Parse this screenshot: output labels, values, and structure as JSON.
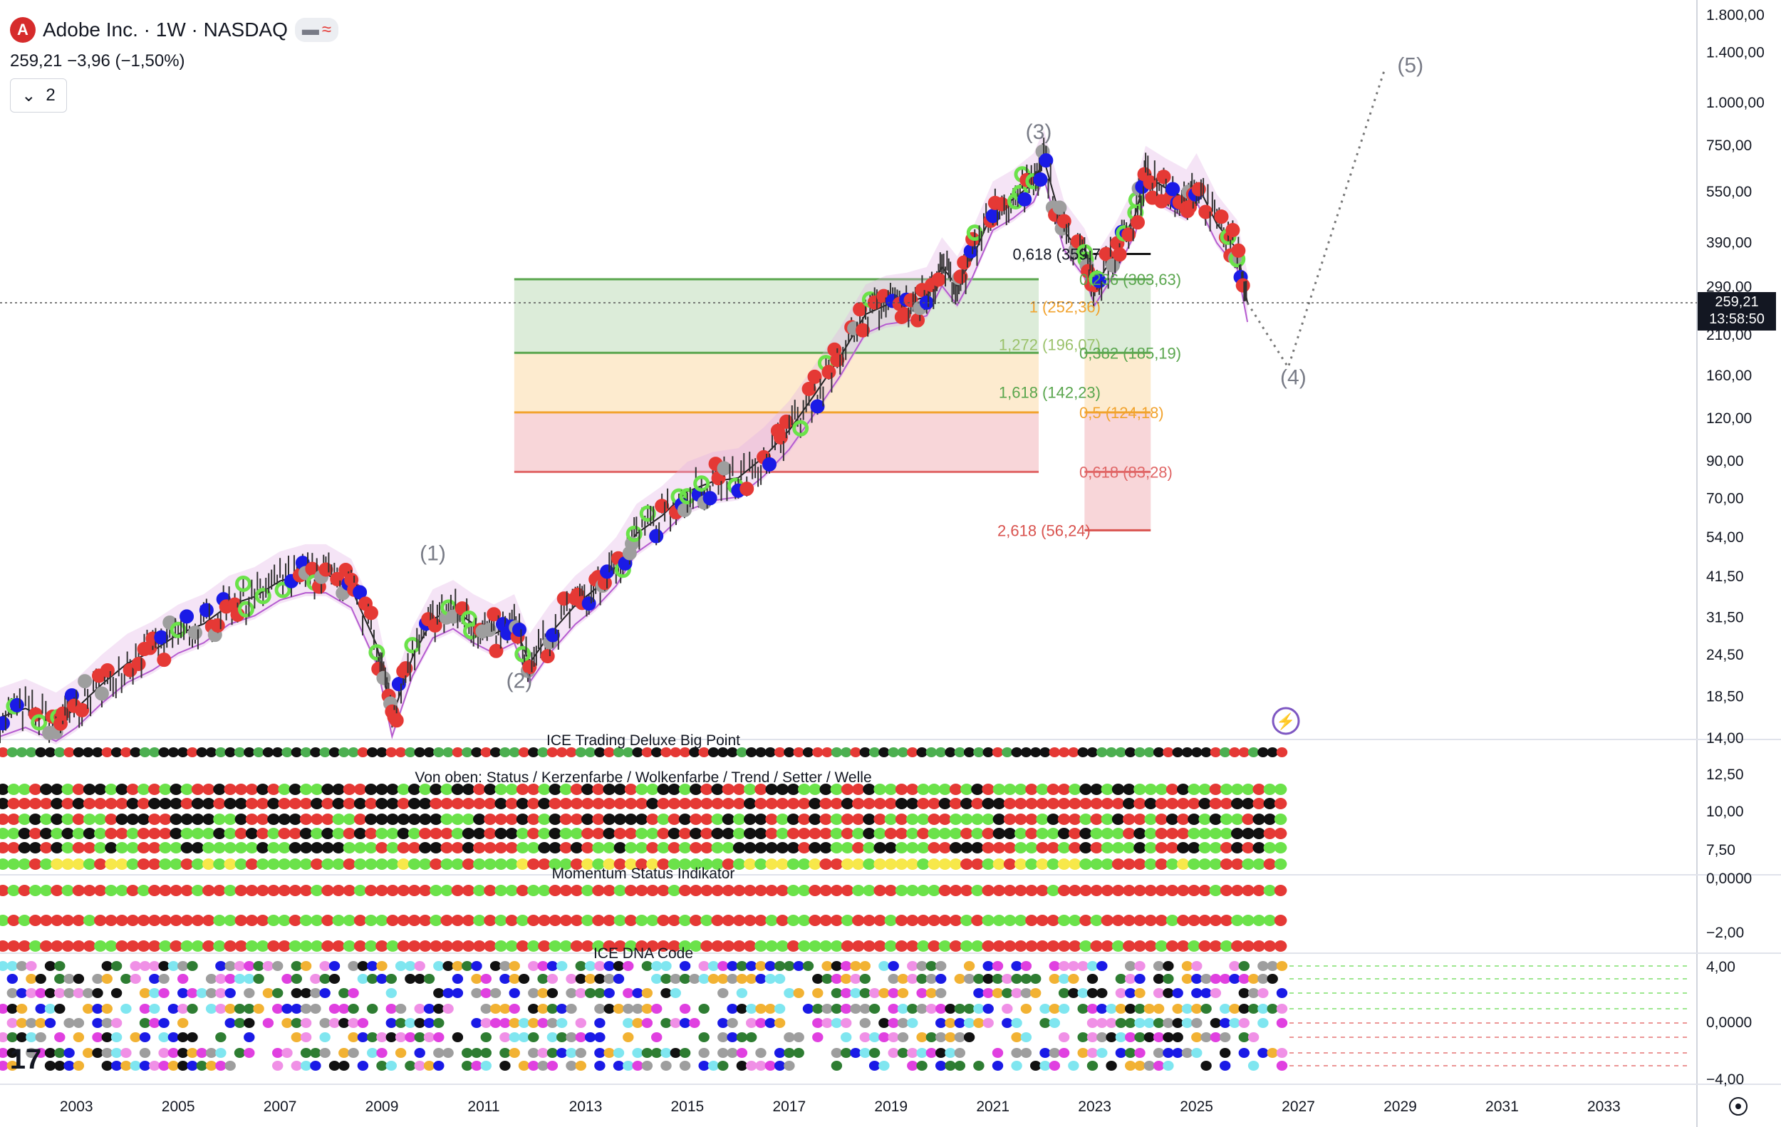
{
  "header": {
    "title": "Adobe Inc. · 1W · NASDAQ",
    "logo_letter": "A",
    "price": "259,21",
    "change": "−3,96 (−1,50%)",
    "collapse_count": "2",
    "pill_icons": [
      "minus-icon",
      "wave-icon"
    ]
  },
  "price_tag": {
    "price": "259,21",
    "countdown": "13:58:50"
  },
  "chart_data": {
    "type": "line",
    "series_label": "",
    "price_scale": "log",
    "y_ticks": [
      "1.800,00",
      "1.400,00",
      "1.000,00",
      "750,00",
      "550,00",
      "390,00",
      "290,00",
      "210,00",
      "160,00",
      "120,00",
      "90,00",
      "70,00",
      "54,00",
      "41,50",
      "31,50",
      "24,50",
      "18,50",
      "14,00"
    ],
    "y_tick_values": [
      1800,
      1400,
      1000,
      750,
      550,
      390,
      290,
      210,
      160,
      120,
      90,
      70,
      54,
      41.5,
      31.5,
      24.5,
      18.5,
      14
    ],
    "ylim": [
      14,
      1800
    ],
    "x_ticks": [
      "2003",
      "2005",
      "2007",
      "2009",
      "2011",
      "2013",
      "2015",
      "2017",
      "2019",
      "2021",
      "2023",
      "2025",
      "2027",
      "2029",
      "2031",
      "2033"
    ],
    "xlim": [
      2001.5,
      2034.8
    ],
    "price_series": {
      "x": [
        2001.5,
        2002.0,
        2002.6,
        2003.0,
        2003.5,
        2004.0,
        2004.5,
        2005.0,
        2005.5,
        2006.0,
        2006.5,
        2007.0,
        2007.5,
        2007.9,
        2008.4,
        2008.9,
        2009.2,
        2009.6,
        2010.0,
        2010.4,
        2010.8,
        2011.2,
        2011.6,
        2011.9,
        2012.3,
        2012.8,
        2013.2,
        2013.6,
        2014.0,
        2014.5,
        2015.0,
        2015.5,
        2016.0,
        2016.5,
        2017.0,
        2017.5,
        2018.0,
        2018.5,
        2018.9,
        2019.3,
        2019.7,
        2020.0,
        2020.3,
        2020.6,
        2021.0,
        2021.4,
        2021.8,
        2022.0,
        2022.4,
        2022.8,
        2023.0,
        2023.4,
        2023.8,
        2024.0,
        2024.4,
        2024.8,
        2025.0,
        2025.4,
        2025.8,
        2026.0
      ],
      "y": [
        16,
        17,
        15.5,
        17,
        20,
        23,
        25,
        28,
        30,
        34,
        36,
        40,
        42,
        42,
        38,
        26,
        16,
        24,
        31,
        33,
        30,
        28,
        30,
        23,
        28,
        34,
        38,
        44,
        55,
        62,
        73,
        78,
        80,
        92,
        110,
        140,
        180,
        240,
        255,
        260,
        270,
        330,
        290,
        350,
        480,
        520,
        580,
        680,
        420,
        350,
        290,
        360,
        470,
        610,
        560,
        520,
        580,
        440,
        370,
        259
      ]
    },
    "projection": {
      "x": [
        2026.0,
        2026.8,
        2028.7
      ],
      "y": [
        259,
        168,
        1250
      ],
      "style": "dotted"
    },
    "wave_labels": [
      {
        "label": "(1)",
        "x": 2010.0,
        "y": 46
      },
      {
        "label": "(2)",
        "x": 2011.7,
        "y": 19.5
      },
      {
        "label": "(3)",
        "x": 2021.9,
        "y": 780
      },
      {
        "label": "(4)",
        "x": 2026.9,
        "y": 150
      },
      {
        "label": "(5)",
        "x": 2029.2,
        "y": 1220
      }
    ],
    "fib_zone_a": {
      "x_range": [
        2011.6,
        2021.9
      ],
      "levels": [
        {
          "label": "0,618 (359,7",
          "value": 359.7,
          "color": "#131722"
        },
        {
          "label": "1 (252,36)",
          "value": 252.36,
          "color": "#f2a32e"
        },
        {
          "label": "1,272 (196,07)",
          "value": 196.07,
          "color": "#9bc26b"
        },
        {
          "label": "1,618 (142,23)",
          "value": 142.23,
          "color": "#5aa64e"
        }
      ],
      "bands": [
        {
          "top": 303.63,
          "bottom": 185.19,
          "color": "#dcecd9"
        },
        {
          "top": 185.19,
          "bottom": 124.18,
          "color": "#fdebcf"
        },
        {
          "top": 124.18,
          "bottom": 83.28,
          "color": "#f8d6d9"
        }
      ]
    },
    "fib_zone_b": {
      "x_range": [
        2022.8,
        2024.1
      ],
      "levels": [
        {
          "label": "0,236 (303,63)",
          "value": 303.63,
          "color": "#5aa64e"
        },
        {
          "label": "0,382 (185,19)",
          "value": 185.19,
          "color": "#5aa64e"
        },
        {
          "label": "0,5 (124,18)",
          "value": 124.18,
          "color": "#f2a32e"
        },
        {
          "label": "0,618 (83,28)",
          "value": 83.28,
          "color": "#e06666"
        },
        {
          "label": "2,618 (56,24)",
          "value": 56.24,
          "color": "#d9534f"
        }
      ]
    },
    "current_price": 259.21,
    "panes": [
      {
        "title": "ICE Trading Deluxe Big Point",
        "rows": 1
      },
      {
        "title": "Von oben: Status / Kerzenfarbe / Wolkenfarbe / Trend / Setter / Welle",
        "rows": 6,
        "y_ticks": [
          "12,50",
          "10,00",
          "7,50"
        ]
      },
      {
        "title": "Momentum Status Indikator",
        "rows": 3,
        "y_ticks": [
          "0,0000",
          "−2,00"
        ]
      },
      {
        "title": "ICE DNA Code",
        "rows": 8,
        "y_ticks": [
          "4,00",
          "0,0000",
          "−4,00"
        ]
      }
    ],
    "colors": {
      "up": "#6be24a",
      "down": "#e53935",
      "cloud": "#e1b3e6",
      "neutral": "#9e9e9e",
      "blue": "#1a1ae6",
      "magenta": "#e040e0",
      "cyan": "#7fe6f0",
      "orange": "#f2b233",
      "darkgreen": "#2e7d32",
      "black": "#111111",
      "yellow": "#f7e84a"
    }
  }
}
